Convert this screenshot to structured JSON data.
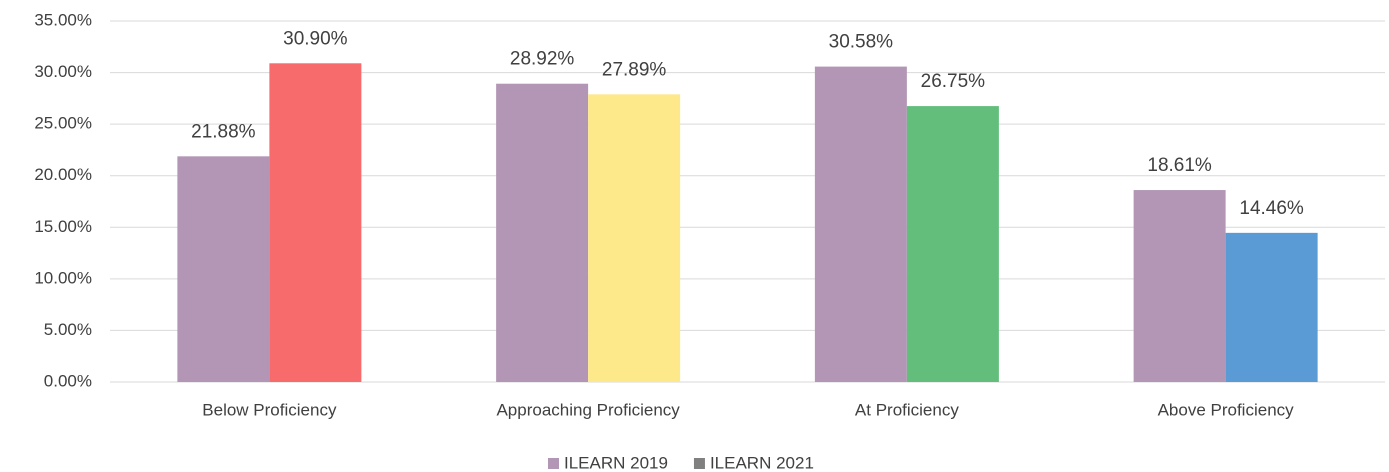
{
  "chart_data": {
    "type": "bar",
    "categories": [
      "Below Proficiency",
      "Approaching Proficiency",
      "At Proficiency",
      "Above Proficiency"
    ],
    "series": [
      {
        "name": "ILEARN 2019",
        "color": "#b396b5",
        "values": [
          21.88,
          28.92,
          30.58,
          18.61
        ],
        "value_labels": [
          "21.88%",
          "28.92%",
          "30.58%",
          "18.61%"
        ]
      },
      {
        "name": "ILEARN 2021",
        "color": "#808080",
        "colors": [
          "#f76b6d",
          "#fde98a",
          "#63be7b",
          "#5a9bd5"
        ],
        "values": [
          30.9,
          27.89,
          26.75,
          14.46
        ],
        "value_labels": [
          "30.90%",
          "27.89%",
          "26.75%",
          "14.46%"
        ]
      }
    ],
    "ylim": [
      0,
      35
    ],
    "yticks": [
      {
        "value": 0,
        "label": "0.00%"
      },
      {
        "value": 5,
        "label": "5.00%"
      },
      {
        "value": 10,
        "label": "10.00%"
      },
      {
        "value": 15,
        "label": "15.00%"
      },
      {
        "value": 20,
        "label": "20.00%"
      },
      {
        "value": 25,
        "label": "25.00%"
      },
      {
        "value": 30,
        "label": "30.00%"
      },
      {
        "value": 35,
        "label": "35.00%"
      }
    ],
    "grid": true,
    "legend": "bottom"
  }
}
